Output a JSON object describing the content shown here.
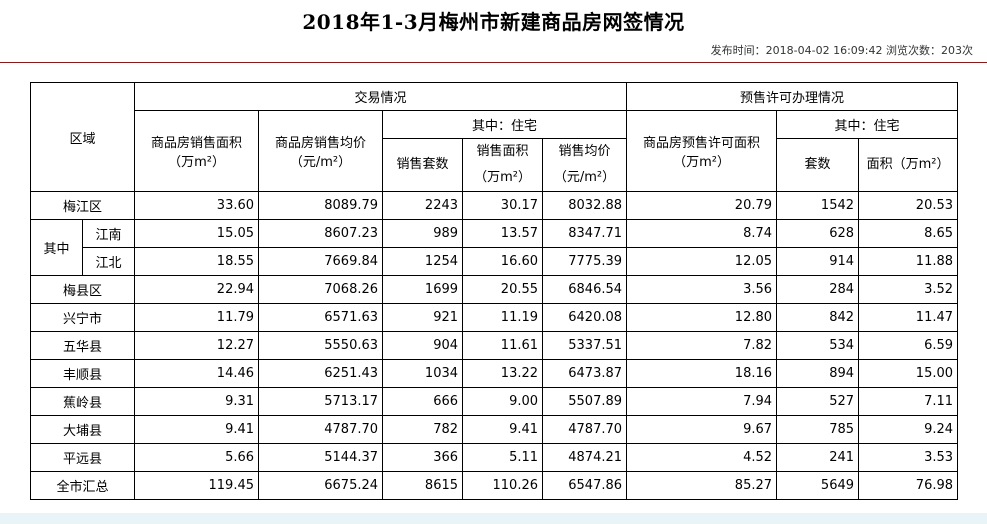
{
  "title": "2018年1-3月梅州市新建商品房网签情况",
  "meta": {
    "publish_label": "发布时间：",
    "publish_time": "2018-04-02 16:09:42",
    "views_label": "浏览次数：",
    "views_count": "203次"
  },
  "table": {
    "region_header": "区域",
    "transaction_header": "交易情况",
    "presale_header": "预售许可办理情况",
    "residential_header_tx": "其中：住宅",
    "residential_header_presale": "其中：住宅",
    "columns": {
      "sales_area": "商品房销售面积（万m²）",
      "sales_area_l1": "商品房销售面积",
      "sales_area_l2": "（万m²）",
      "avg_price_l1": "商品房销售均价",
      "avg_price_l2": "（元/m²）",
      "res_units": "销售套数",
      "res_area_l1": "销售面积",
      "res_area_l2": "（万m²）",
      "res_price_l1": "销售均价",
      "res_price_l2": "（元/m²）",
      "presale_area_l1": "商品房预售许可面积",
      "presale_area_l2": "（万m²）",
      "presale_units": "套数",
      "presale_res_area": "面积（万m²）"
    },
    "subgroup_label": "其中",
    "rows": [
      {
        "name": "梅江区",
        "v": [
          "33.60",
          "8089.79",
          "2243",
          "30.17",
          "8032.88",
          "20.79",
          "1542",
          "20.53"
        ]
      },
      {
        "name": "江南",
        "v": [
          "15.05",
          "8607.23",
          "989",
          "13.57",
          "8347.71",
          "8.74",
          "628",
          "8.65"
        ]
      },
      {
        "name": "江北",
        "v": [
          "18.55",
          "7669.84",
          "1254",
          "16.60",
          "7775.39",
          "12.05",
          "914",
          "11.88"
        ]
      },
      {
        "name": "梅县区",
        "v": [
          "22.94",
          "7068.26",
          "1699",
          "20.55",
          "6846.54",
          "3.56",
          "284",
          "3.52"
        ]
      },
      {
        "name": "兴宁市",
        "v": [
          "11.79",
          "6571.63",
          "921",
          "11.19",
          "6420.08",
          "12.80",
          "842",
          "11.47"
        ]
      },
      {
        "name": "五华县",
        "v": [
          "12.27",
          "5550.63",
          "904",
          "11.61",
          "5337.51",
          "7.82",
          "534",
          "6.59"
        ]
      },
      {
        "name": "丰顺县",
        "v": [
          "14.46",
          "6251.43",
          "1034",
          "13.22",
          "6473.87",
          "18.16",
          "894",
          "15.00"
        ]
      },
      {
        "name": "蕉岭县",
        "v": [
          "9.31",
          "5713.17",
          "666",
          "9.00",
          "5507.89",
          "7.94",
          "527",
          "7.11"
        ]
      },
      {
        "name": "大埔县",
        "v": [
          "9.41",
          "4787.70",
          "782",
          "9.41",
          "4787.70",
          "9.67",
          "785",
          "9.24"
        ]
      },
      {
        "name": "平远县",
        "v": [
          "5.66",
          "5144.37",
          "366",
          "5.11",
          "4874.21",
          "4.52",
          "241",
          "3.53"
        ]
      },
      {
        "name": "全市汇总",
        "v": [
          "119.45",
          "6675.24",
          "8615",
          "110.26",
          "6547.86",
          "85.27",
          "5649",
          "76.98"
        ]
      }
    ]
  }
}
